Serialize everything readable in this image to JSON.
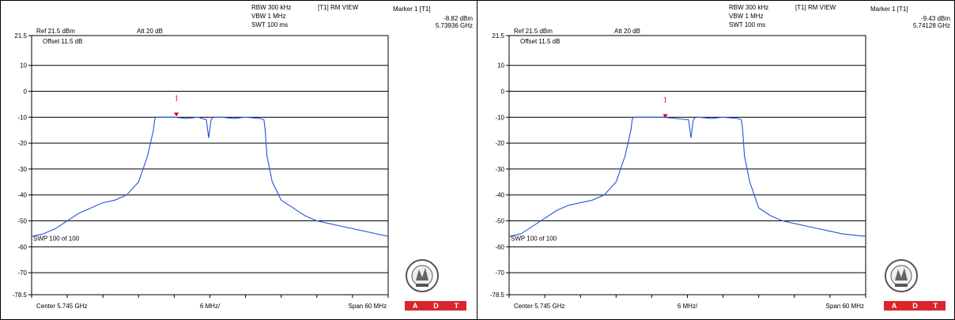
{
  "chart_data": [
    {
      "type": "line",
      "ref_label": "Ref 21.5 dBm",
      "att_label": "Att  20 dB",
      "rbw_label": "RBW 300 kHz",
      "vbw_label": "VBW 1 MHz",
      "swt_label": "SWT 100 ms",
      "trace_label": "[T1] RM VIEW",
      "marker_title": "Marker 1 [T1]",
      "marker_level": "-8.82 dBm",
      "marker_freq": "5.73936 GHz",
      "offset_label": "Offset 11.5 dB",
      "sweep_label": "SWP 100 of 100",
      "center_label": "Center 5.745 GHz",
      "div_label": "6 MHz/",
      "span_label": "Span 60 MHz",
      "marker_number": "1",
      "y_ticks": [
        "21.5",
        "10",
        "0",
        "-10",
        "-20",
        "-30",
        "-40",
        "-50",
        "-60",
        "-70",
        "-78.5"
      ],
      "ylim": [
        -78.5,
        21.5
      ],
      "xlim_mhz": [
        -30,
        30
      ],
      "marker_x_mhz": -5.64,
      "marker_y": -8.82,
      "trace_x_mhz": [
        -30,
        -28,
        -26,
        -24,
        -22,
        -20,
        -18,
        -16,
        -14,
        -12,
        -10.5,
        -9.5,
        -9.3,
        -9.1,
        -8.5,
        -6,
        -4,
        -2,
        -0.6,
        -0.2,
        0.2,
        0.6,
        2,
        4,
        6,
        8.5,
        9.1,
        9.3,
        9.6,
        10.5,
        12,
        14,
        16,
        18,
        20,
        22,
        24,
        26,
        28,
        30
      ],
      "trace_y": [
        -56,
        -55,
        -53,
        -50,
        -47,
        -45,
        -43,
        -42,
        -40,
        -35,
        -25,
        -15,
        -11,
        -10,
        -10,
        -10,
        -10.5,
        -10,
        -11,
        -18,
        -11,
        -10,
        -10,
        -10.5,
        -10,
        -10.5,
        -11,
        -15,
        -25,
        -35,
        -42,
        -45,
        -48,
        -50,
        -51,
        -52,
        -53,
        -54,
        -55,
        -56
      ],
      "colors": {
        "trace": "#2454d8",
        "marker": "#cc0000"
      }
    },
    {
      "type": "line",
      "ref_label": "Ref 21.5 dBm",
      "att_label": "Att  20 dB",
      "rbw_label": "RBW 300 kHz",
      "vbw_label": "VBW 1 MHz",
      "swt_label": "SWT 100 ms",
      "trace_label": "[T1] RM VIEW",
      "marker_title": "Marker 1 [T1]",
      "marker_level": "-9.43 dBm",
      "marker_freq": "5.74128 GHz",
      "offset_label": "Offset 11.5 dB",
      "sweep_label": "SWP 100 of 100",
      "center_label": "Center 5.745 GHz",
      "div_label": "6 MHz/",
      "span_label": "Span 60 MHz",
      "marker_number": "1",
      "y_ticks": [
        "21.5",
        "10",
        "0",
        "-10",
        "-20",
        "-30",
        "-40",
        "-50",
        "-60",
        "-70",
        "-78.5"
      ],
      "ylim": [
        -78.5,
        21.5
      ],
      "xlim_mhz": [
        -30,
        30
      ],
      "marker_x_mhz": -3.72,
      "marker_y": -9.43,
      "trace_x_mhz": [
        -30,
        -28,
        -26,
        -24,
        -22,
        -20,
        -18,
        -16,
        -14,
        -12,
        -10.5,
        -9.5,
        -9.3,
        -9.1,
        -8.5,
        -6,
        -4,
        -2,
        0.2,
        0.6,
        1.0,
        1.4,
        2,
        4,
        6,
        8.5,
        9.1,
        9.3,
        9.6,
        10.5,
        12,
        14,
        16,
        18,
        20,
        22,
        24,
        26,
        28,
        30
      ],
      "trace_y": [
        -56,
        -55,
        -52,
        -49,
        -46,
        -44,
        -43,
        -42,
        -40,
        -35,
        -25,
        -15,
        -11,
        -10,
        -10,
        -10,
        -10,
        -10.5,
        -11,
        -18,
        -11,
        -10,
        -10,
        -10.5,
        -10,
        -10.5,
        -11,
        -15,
        -25,
        -35,
        -45,
        -48,
        -50,
        -51,
        -52,
        -53,
        -54,
        -55,
        -55.5,
        -56
      ],
      "colors": {
        "trace": "#2454d8",
        "marker": "#cc0000"
      }
    }
  ],
  "adt_letters": [
    "A",
    "D",
    "T"
  ],
  "seal_text": "BUREAU VERITAS",
  "seal_year": "1828"
}
